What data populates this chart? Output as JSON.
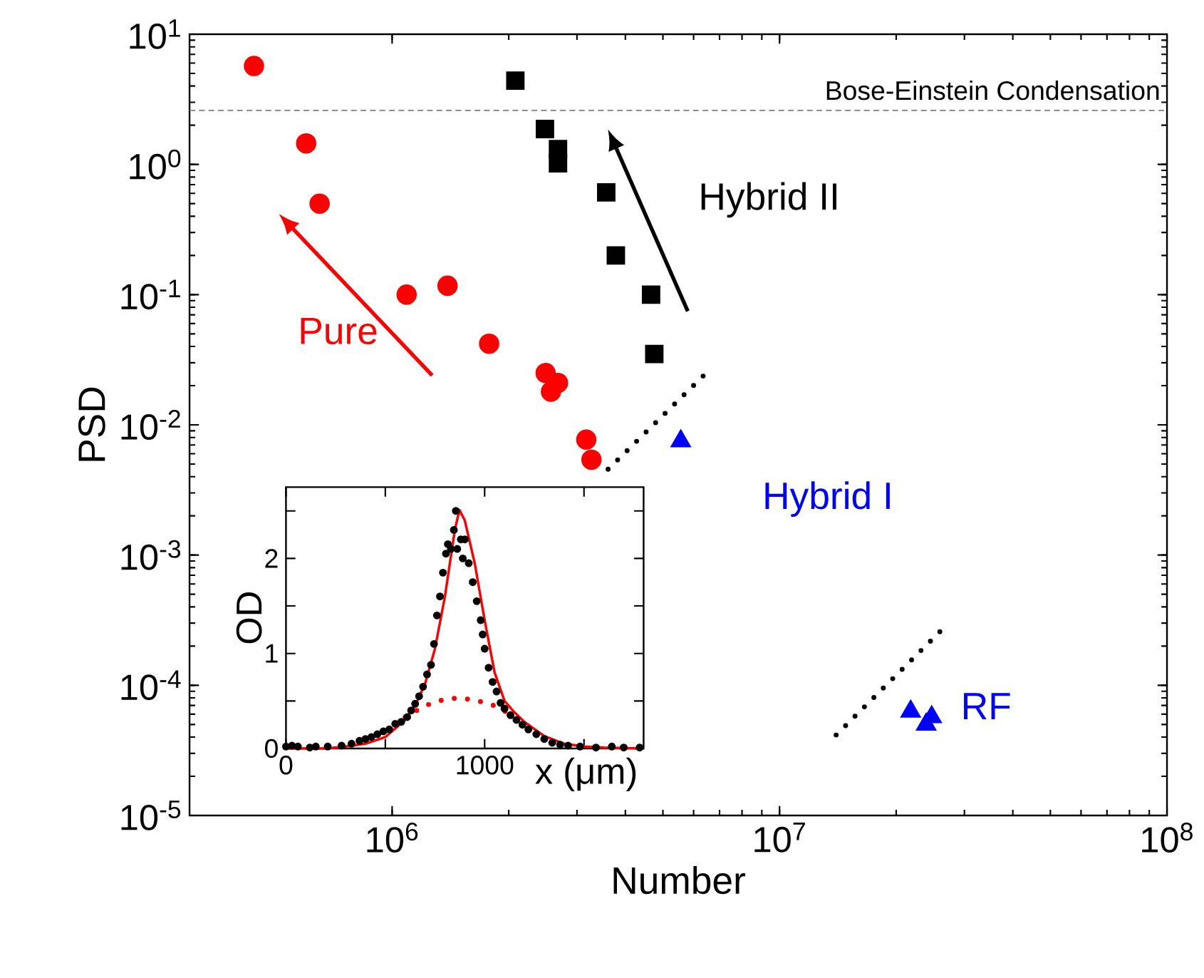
{
  "chart_data": [
    {
      "type": "scatter",
      "xlabel": "Number",
      "ylabel": "PSD",
      "log": "xy",
      "grid": false,
      "xlim": [
        300000,
        100000000
      ],
      "ylim": [
        1e-05,
        10
      ],
      "xticks": [
        {
          "value": 1000000,
          "label": "10$^{6}$"
        },
        {
          "value": 10000000,
          "label": "10$^{7}$"
        },
        {
          "value": 100000000,
          "label": "10$^{8}$"
        }
      ],
      "yticks": [
        {
          "value": 1e-05,
          "label": "10$^{-5}$"
        },
        {
          "value": 0.0001,
          "label": "10$^{-4}$"
        },
        {
          "value": 0.001,
          "label": "10$^{-3}$"
        },
        {
          "value": 0.01,
          "label": "10$^{-2}$"
        },
        {
          "value": 0.1,
          "label": "10$^{-1}$"
        },
        {
          "value": 1,
          "label": "10$^{0}$"
        },
        {
          "value": 10,
          "label": "10$^{1}$"
        }
      ],
      "series": [
        {
          "name": "Pure",
          "color": "#ff0000",
          "marker": "circle",
          "x": [
            440000,
            600000,
            650000,
            1090000,
            1390000,
            1780000,
            2490000,
            2680000,
            2570000,
            3170000,
            3270000
          ],
          "values": [
            5.7,
            1.45,
            0.5,
            0.1,
            0.117,
            0.042,
            0.025,
            0.021,
            0.018,
            0.0077,
            0.0054
          ]
        },
        {
          "name": "Hybrid II",
          "color": "#000000",
          "marker": "square",
          "x": [
            2080000,
            2480000,
            2680000,
            2680000,
            3570000,
            3780000,
            4660000,
            4750000
          ],
          "values": [
            4.4,
            1.87,
            1.31,
            1.02,
            0.61,
            0.2,
            0.1,
            0.035
          ]
        },
        {
          "name": "Hybrid I",
          "color": "#0000ff",
          "marker": "triangle",
          "x": [
            5560000
          ],
          "values": [
            0.0075
          ]
        },
        {
          "name": "RF",
          "color": "#0000ff",
          "marker": "triangle",
          "x": [
            21800000,
            24700000,
            23900000
          ],
          "values": [
            6.3e-05,
            5.7e-05,
            5e-05
          ]
        },
        {
          "type": "line",
          "color": "#000000",
          "line_style": "dotted",
          "x": [
            3610000,
            6350000
          ],
          "values": [
            0.00456,
            0.0237
          ]
        },
        {
          "type": "line",
          "color": "#000000",
          "line_style": "dotted",
          "x": [
            14000000,
            26500000
          ],
          "values": [
            4.15e-05,
            0.000275
          ]
        }
      ],
      "ref_lines": [
        {
          "axis": "y",
          "value": 2.6,
          "label": "Bose-Einstein Condensation",
          "color": "#808080",
          "line_style": "dashed"
        }
      ]
    },
    {
      "type": "scatter",
      "xlabel": "x (μm)",
      "ylabel": "OD",
      "grid": false,
      "xlim": [
        0,
        1800
      ],
      "ylim": [
        0,
        2.75
      ],
      "xticks": [
        0,
        {
          "value": 500,
          "label": null
        },
        1000,
        {
          "value": 1500,
          "label": null
        }
      ],
      "yticks": [
        0,
        {
          "value": 0.5,
          "label": null
        },
        1,
        {
          "value": 1.5,
          "label": null
        },
        2,
        {
          "value": 2.5,
          "label": null
        }
      ],
      "series": [
        {
          "color": "#000000",
          "marker": "circle",
          "x": [
            0,
            30,
            60,
            120,
            150,
            210,
            280,
            330,
            370,
            400,
            430,
            460,
            490,
            520,
            550,
            580,
            610,
            630,
            650,
            670,
            690,
            710,
            730,
            745,
            760,
            775,
            790,
            805,
            815,
            830,
            845,
            855,
            862,
            880,
            890,
            900,
            920,
            940,
            960,
            980,
            990,
            1000,
            1020,
            1040,
            1060,
            1080,
            1100,
            1130,
            1160,
            1190,
            1220,
            1260,
            1300,
            1340,
            1380,
            1420,
            1480,
            1560,
            1640,
            1700,
            1780
          ],
          "values": [
            0.02,
            0.03,
            0.02,
            0.01,
            0.02,
            0.02,
            0.03,
            0.05,
            0.08,
            0.1,
            0.12,
            0.15,
            0.18,
            0.2,
            0.26,
            0.28,
            0.33,
            0.4,
            0.47,
            0.55,
            0.65,
            0.78,
            0.88,
            1.1,
            1.4,
            1.6,
            1.85,
            2.05,
            2.15,
            2.1,
            2.3,
            2.5,
            2.1,
            2.2,
            2.0,
            2.2,
            1.95,
            1.75,
            1.55,
            1.35,
            1.2,
            1.05,
            0.85,
            0.7,
            0.6,
            0.48,
            0.42,
            0.35,
            0.3,
            0.25,
            0.2,
            0.15,
            0.1,
            0.06,
            0.04,
            0.03,
            0.02,
            0.01,
            0.02,
            0.01,
            0.01
          ]
        },
        {
          "type": "line",
          "color": "#ff0000",
          "line_style": "solid",
          "x": [
            0,
            200,
            300,
            400,
            500,
            600,
            650,
            700,
            750,
            800,
            850,
            873,
            900,
            950,
            1000,
            1050,
            1100,
            1150,
            1200,
            1300,
            1400,
            1500,
            1600,
            1800
          ],
          "values": [
            0,
            0,
            0.02,
            0.05,
            0.12,
            0.3,
            0.45,
            0.68,
            1.05,
            1.6,
            2.3,
            2.51,
            2.4,
            1.95,
            1.35,
            0.8,
            0.5,
            0.38,
            0.28,
            0.13,
            0.05,
            0.02,
            0.01,
            0
          ]
        },
        {
          "type": "line",
          "color": "#ff0000",
          "line_style": "dotted",
          "x": [
            600,
            700,
            800,
            873,
            950,
            1050,
            1130
          ],
          "values": [
            0.33,
            0.45,
            0.52,
            0.53,
            0.51,
            0.45,
            0.36
          ]
        }
      ]
    }
  ]
}
